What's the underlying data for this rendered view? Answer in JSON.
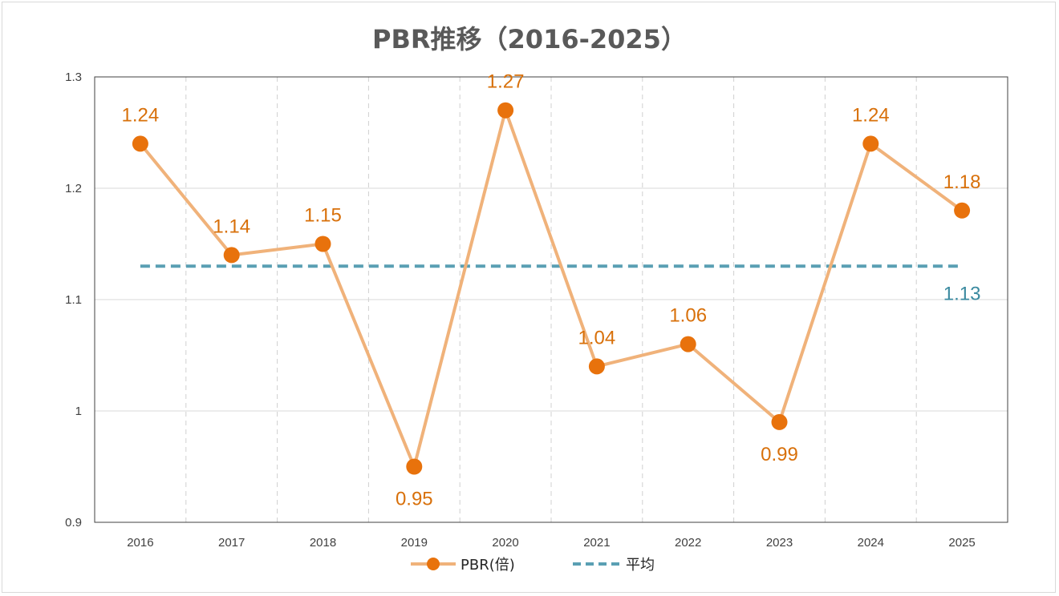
{
  "chart_data": {
    "type": "line",
    "title": "PBR推移（2016-2025）",
    "categories": [
      "2016",
      "2017",
      "2018",
      "2019",
      "2020",
      "2021",
      "2022",
      "2023",
      "2024",
      "2025"
    ],
    "series": [
      {
        "name": "PBR(倍)",
        "values": [
          1.24,
          1.14,
          1.15,
          0.95,
          1.27,
          1.04,
          1.06,
          0.99,
          1.24,
          1.18
        ],
        "labels": [
          "1.24",
          "1.14",
          "1.15",
          "0.95",
          "1.27",
          "1.04",
          "1.06",
          "0.99",
          "1.24",
          "1.18"
        ],
        "label_positions": [
          "above",
          "above",
          "above",
          "below",
          "above",
          "above",
          "above",
          "below",
          "above",
          "above"
        ],
        "line_color": "#f0b27a",
        "marker_color": "#e8720c",
        "style": "solid-with-markers"
      },
      {
        "name": "平均",
        "value": 1.13,
        "label": "1.13",
        "line_color": "#5a9fb3",
        "style": "dashed"
      }
    ],
    "ylim": [
      0.9,
      1.3
    ],
    "yticks": [
      "0.9",
      "1",
      "1.1",
      "1.2",
      "1.3"
    ],
    "grid": true,
    "legend_position": "bottom",
    "xlabel": "",
    "ylabel": ""
  }
}
